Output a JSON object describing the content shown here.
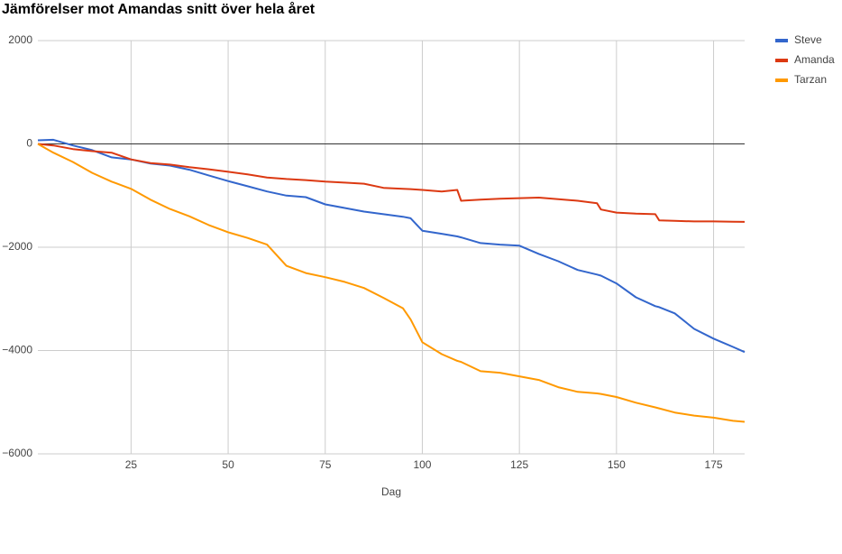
{
  "chart_data": {
    "type": "line",
    "title": "Jämförelser mot Amandas snitt över hela året",
    "x_label": "Dag",
    "x": [
      1,
      5,
      10,
      15,
      20,
      25,
      30,
      35,
      40,
      45,
      50,
      55,
      60,
      65,
      70,
      75,
      80,
      85,
      90,
      95,
      97,
      100,
      105,
      109,
      110,
      115,
      120,
      125,
      130,
      135,
      140,
      145,
      146,
      150,
      155,
      160,
      161,
      165,
      170,
      175,
      180,
      183
    ],
    "series": [
      {
        "name": "Steve",
        "color": "#3366cc",
        "values": [
          70,
          80,
          -30,
          -120,
          -260,
          -300,
          -380,
          -420,
          -500,
          -610,
          -720,
          -820,
          -920,
          -1000,
          -1030,
          -1170,
          -1240,
          -1310,
          -1360,
          -1410,
          -1440,
          -1680,
          -1740,
          -1790,
          -1810,
          -1920,
          -1950,
          -1970,
          -2130,
          -2270,
          -2440,
          -2530,
          -2550,
          -2700,
          -2970,
          -3140,
          -3160,
          -3280,
          -3580,
          -3770,
          -3930,
          -4030
        ]
      },
      {
        "name": "Amanda",
        "color": "#dc3912",
        "values": [
          0,
          -30,
          -100,
          -140,
          -170,
          -300,
          -370,
          -400,
          -450,
          -490,
          -540,
          -590,
          -650,
          -680,
          -700,
          -730,
          -750,
          -770,
          -850,
          -870,
          -875,
          -890,
          -920,
          -890,
          -1100,
          -1080,
          -1060,
          -1050,
          -1040,
          -1070,
          -1100,
          -1150,
          -1270,
          -1330,
          -1350,
          -1360,
          -1480,
          -1490,
          -1500,
          -1500,
          -1505,
          -1510
        ]
      },
      {
        "name": "Tarzan",
        "color": "#ff9900",
        "values": [
          0,
          -170,
          -350,
          -560,
          -730,
          -870,
          -1080,
          -1260,
          -1400,
          -1570,
          -1710,
          -1820,
          -1950,
          -2360,
          -2500,
          -2580,
          -2670,
          -2790,
          -2980,
          -3180,
          -3400,
          -3840,
          -4070,
          -4200,
          -4220,
          -4400,
          -4430,
          -4500,
          -4570,
          -4710,
          -4800,
          -4830,
          -4840,
          -4900,
          -5010,
          -5100,
          -5120,
          -5200,
          -5260,
          -5300,
          -5360,
          -5380
        ]
      }
    ],
    "xlim": [
      1,
      183
    ],
    "xticks": [
      25,
      50,
      75,
      100,
      125,
      150,
      175
    ],
    "ylim": [
      -6000,
      2000
    ],
    "yticks": [
      {
        "value": -6000,
        "label": "−6000"
      },
      {
        "value": -4000,
        "label": "−4000"
      },
      {
        "value": -2000,
        "label": "−2000"
      },
      0,
      2000
    ],
    "grid": true,
    "legend": "right"
  }
}
